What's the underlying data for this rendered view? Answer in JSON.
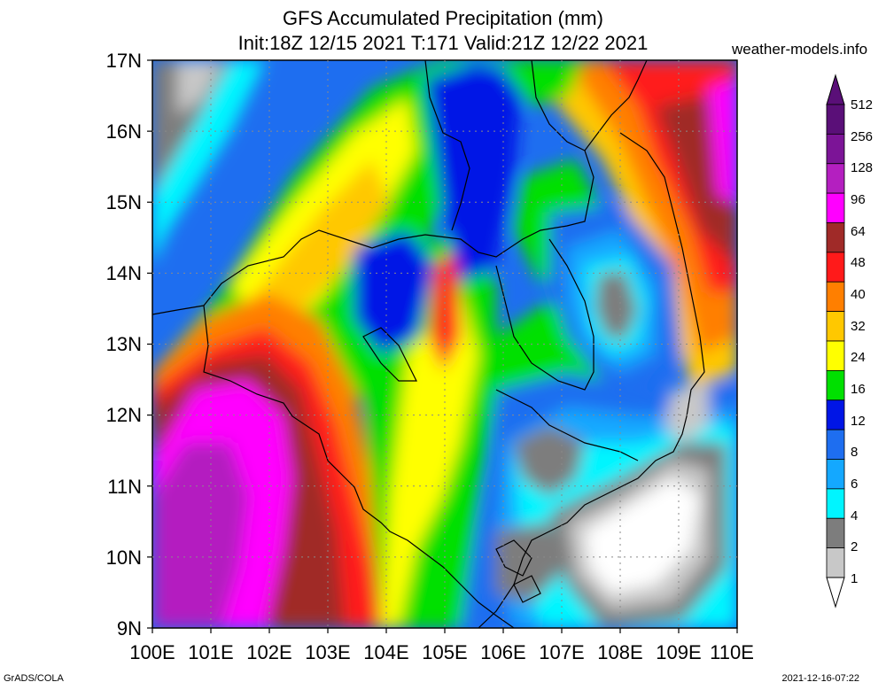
{
  "header": {
    "title": "GFS Accumulated Precipitation (mm)",
    "subtitle": "Init:18Z 12/15 2021 T:171 Valid:21Z 12/22 2021",
    "site": "weather-models.info"
  },
  "map": {
    "lat_labels": [
      "17N",
      "16N",
      "15N",
      "14N",
      "13N",
      "12N",
      "11N",
      "10N",
      "9N"
    ],
    "lon_labels": [
      "100E",
      "101E",
      "102E",
      "103E",
      "104E",
      "105E",
      "106E",
      "107E",
      "108E",
      "109E",
      "110E"
    ],
    "lat_range": [
      9,
      17
    ],
    "lon_range": [
      100,
      110
    ]
  },
  "legend": {
    "levels": [
      {
        "label": "512",
        "color": "#5a0f78"
      },
      {
        "label": "256",
        "color": "#7c1497"
      },
      {
        "label": "128",
        "color": "#b41fc0"
      },
      {
        "label": "96",
        "color": "#ff00ff"
      },
      {
        "label": "64",
        "color": "#a02a28"
      },
      {
        "label": "48",
        "color": "#ff1a1a"
      },
      {
        "label": "40",
        "color": "#ff7f00"
      },
      {
        "label": "32",
        "color": "#ffc800"
      },
      {
        "label": "24",
        "color": "#ffff00"
      },
      {
        "label": "16",
        "color": "#00e000"
      },
      {
        "label": "12",
        "color": "#0015e6"
      },
      {
        "label": "8",
        "color": "#1e6ef0"
      },
      {
        "label": "6",
        "color": "#14a8ff"
      },
      {
        "label": "4",
        "color": "#00f5ff"
      },
      {
        "label": "2",
        "color": "#7d7d7d"
      },
      {
        "label": "1",
        "color": "#c8c8c8"
      }
    ],
    "below_min_color": "#ffffff"
  },
  "footer": {
    "left": "GrADS/COLA",
    "right": "2021-12-16-07:22"
  }
}
